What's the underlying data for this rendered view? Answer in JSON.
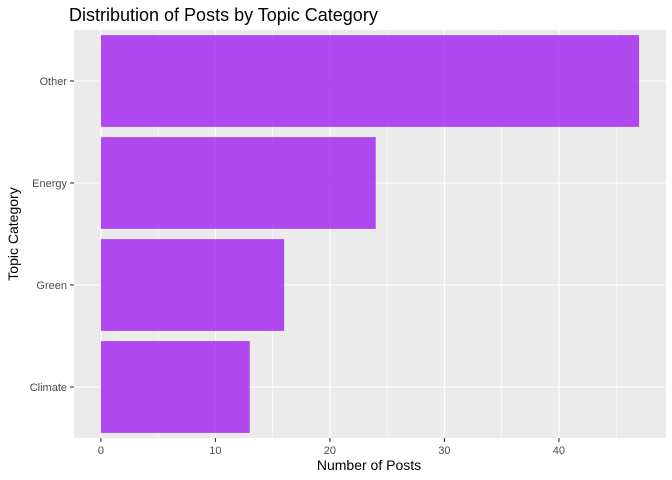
{
  "chart_data": {
    "type": "bar",
    "orientation": "horizontal",
    "title": "Distribution of Posts by Topic Category",
    "xlabel": "Number of Posts",
    "ylabel": "Topic Category",
    "categories": [
      "Climate",
      "Green",
      "Energy",
      "Other"
    ],
    "values": [
      13,
      16,
      24,
      47
    ],
    "xlim": [
      -2.35,
      49.35
    ],
    "xticks": [
      0,
      10,
      20,
      30,
      40
    ],
    "grid": true,
    "legend": "none",
    "colors": {
      "bar": "#a020f0",
      "panel": "#ebebeb",
      "grid": "#ffffff"
    }
  }
}
